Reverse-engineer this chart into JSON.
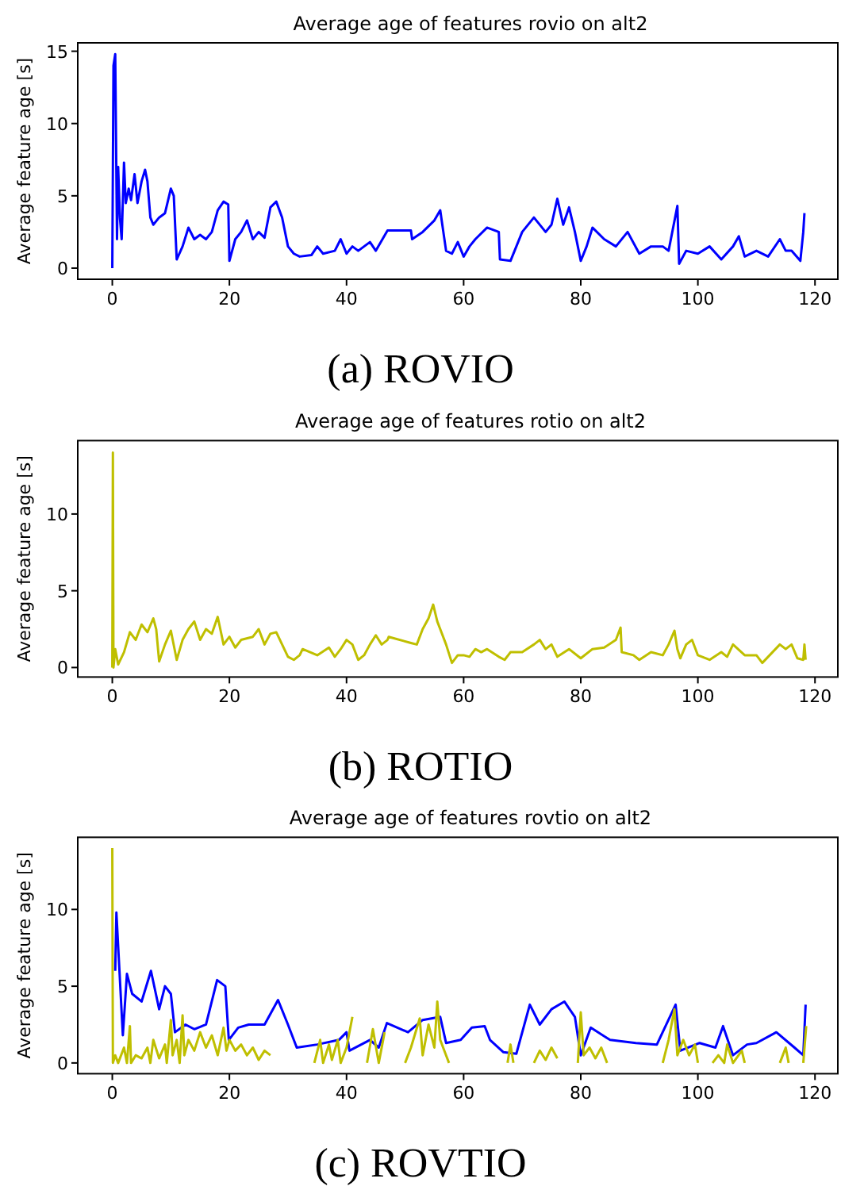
{
  "chart_data": [
    {
      "type": "line",
      "title": "Average age of features rovio on alt2",
      "ylabel": "Average feature age [s]",
      "xlim": [
        -5.9,
        123.9
      ],
      "ylim": [
        -0.77,
        15.58
      ],
      "xticks": [
        0,
        20,
        40,
        60,
        80,
        100,
        120
      ],
      "yticks": [
        0,
        5,
        10,
        15
      ],
      "annotations": [
        "(a) ROVIO"
      ],
      "series": [
        {
          "color": "#0000ff",
          "x": [
            0,
            0.2,
            0.5,
            0.8,
            1,
            1.3,
            1.6,
            2,
            2.3,
            2.8,
            3.2,
            3.8,
            4.3,
            5,
            5.6,
            6,
            6.5,
            7,
            8,
            9,
            10,
            10.5,
            11,
            12,
            13,
            14,
            15,
            16,
            17,
            18,
            19,
            19.8,
            20,
            21,
            22,
            23,
            24,
            25,
            26,
            27,
            28,
            29,
            30,
            31,
            32,
            34,
            35,
            36,
            38,
            39,
            40,
            41,
            42,
            43,
            44,
            45,
            47,
            51,
            51.2,
            53,
            55,
            56,
            57,
            58,
            59,
            60,
            61,
            62,
            64,
            66,
            66.2,
            68,
            70,
            72,
            74,
            75,
            76,
            77,
            78,
            79,
            80,
            81,
            82,
            84,
            86,
            88,
            90,
            92,
            94,
            95,
            96.5,
            96.8,
            98,
            100,
            102,
            104,
            106,
            107,
            108,
            110,
            112,
            114,
            115,
            116,
            117.5,
            118,
            118.2
          ],
          "values": [
            0,
            14,
            14.8,
            2,
            7,
            3.5,
            2,
            7.3,
            4.5,
            5.5,
            4.7,
            6.5,
            4.5,
            6,
            6.8,
            6,
            3.5,
            3,
            3.5,
            3.8,
            5.5,
            5,
            0.6,
            1.5,
            2.8,
            2,
            2.3,
            2,
            2.5,
            4,
            4.6,
            4.4,
            0.5,
            2,
            2.5,
            3.3,
            2,
            2.5,
            2.1,
            4.2,
            4.6,
            3.5,
            1.5,
            1,
            0.8,
            0.9,
            1.5,
            1,
            1.2,
            2,
            1,
            1.5,
            1.2,
            1.5,
            1.8,
            1.2,
            2.6,
            2.6,
            2,
            2.5,
            3.3,
            4,
            1.2,
            1,
            1.8,
            0.8,
            1.5,
            2,
            2.8,
            2.5,
            0.6,
            0.5,
            2.5,
            3.5,
            2.5,
            3,
            4.8,
            3,
            4.2,
            2.5,
            0.5,
            1.5,
            2.8,
            2,
            1.5,
            2.5,
            1,
            1.5,
            1.5,
            1.2,
            4.3,
            0.3,
            1.2,
            1,
            1.5,
            0.6,
            1.5,
            2.2,
            0.8,
            1.2,
            0.8,
            2,
            1.2,
            1.2,
            0.5,
            2.5,
            3.8
          ]
        }
      ]
    },
    {
      "type": "line",
      "title": "Average age of features rotio on alt2",
      "ylabel": "Average feature age [s]",
      "xlim": [
        -5.9,
        123.9
      ],
      "ylim": [
        -0.62,
        14.78
      ],
      "xticks": [
        0,
        20,
        40,
        60,
        80,
        100,
        120
      ],
      "yticks": [
        0,
        5,
        10
      ],
      "annotations": [
        "(b) ROTIO"
      ],
      "series": [
        {
          "color": "#bfbf00",
          "x": [
            0,
            0.1,
            0.2,
            0.5,
            1,
            2,
            3,
            4,
            5,
            6,
            7,
            7.5,
            8,
            9,
            10,
            11,
            12,
            13,
            14,
            15,
            16,
            17,
            18,
            19,
            20,
            21,
            22,
            24,
            25,
            26,
            27,
            28,
            29,
            30,
            31,
            32,
            32.5,
            35,
            37,
            38,
            39,
            40,
            41,
            42,
            43,
            44,
            45,
            46,
            47,
            47.2,
            51,
            52,
            53,
            54,
            54.8,
            55.5,
            56,
            57,
            58,
            59,
            60,
            61,
            62,
            63,
            64,
            66,
            67,
            68,
            70,
            72,
            73,
            74,
            75,
            76,
            78,
            80,
            82,
            84,
            86,
            86.8,
            87,
            89,
            90,
            92,
            94,
            95,
            96,
            96.5,
            97,
            98,
            99,
            100,
            102,
            104,
            105,
            106,
            108,
            110,
            111,
            112,
            114,
            115,
            116,
            117,
            118,
            118.2,
            118.4
          ],
          "values": [
            0,
            14,
            0,
            1.2,
            0.2,
            1,
            2.3,
            1.8,
            2.8,
            2.3,
            3.2,
            2.5,
            0.4,
            1.5,
            2.4,
            0.5,
            1.8,
            2.5,
            3,
            1.8,
            2.5,
            2.2,
            3.3,
            1.5,
            2,
            1.3,
            1.8,
            2,
            2.5,
            1.5,
            2.2,
            2.3,
            1.5,
            0.7,
            0.5,
            0.8,
            1.2,
            0.8,
            1.3,
            0.7,
            1.2,
            1.8,
            1.5,
            0.5,
            0.8,
            1.5,
            2.1,
            1.5,
            1.8,
            2,
            1.6,
            1.5,
            2.5,
            3.2,
            4.1,
            3,
            2.5,
            1.5,
            0.3,
            0.8,
            0.8,
            0.7,
            1.2,
            1,
            1.2,
            0.7,
            0.5,
            1,
            1,
            1.5,
            1.8,
            1.2,
            1.5,
            0.7,
            1.2,
            0.6,
            1.2,
            1.3,
            1.8,
            2.6,
            1,
            0.8,
            0.5,
            1,
            0.8,
            1.5,
            2.4,
            1.2,
            0.6,
            1.5,
            1.8,
            0.8,
            0.5,
            1,
            0.7,
            1.5,
            0.8,
            0.8,
            0.3,
            0.7,
            1.5,
            1.2,
            1.5,
            0.6,
            0.5,
            1.5,
            0.5
          ]
        }
      ]
    },
    {
      "type": "line",
      "title": "Average age of features rovtio on alt2",
      "ylabel": "Average feature age [s]",
      "xlim": [
        -5.9,
        123.9
      ],
      "ylim": [
        -0.7,
        14.7
      ],
      "xticks": [
        0,
        20,
        40,
        60,
        80,
        100,
        120
      ],
      "yticks": [
        0,
        5,
        10
      ],
      "annotations": [
        "(c) ROVTIO"
      ],
      "series": [
        {
          "color": "#0000ff",
          "x": [
            0.5,
            0.7,
            1.8,
            2.5,
            3.4,
            5,
            6.6,
            8,
            9,
            10,
            10.7,
            12.5,
            14,
            16,
            17.9,
            19.3,
            19.9,
            21.5,
            23.3,
            26,
            28.3,
            30,
            31.5,
            35,
            38.7,
            40,
            40.5,
            44,
            45.5,
            46.9,
            50.5,
            53,
            56,
            57,
            59.5,
            61.4,
            63.6,
            64.5,
            66.8,
            69,
            71.3,
            73,
            75,
            77.2,
            79,
            80,
            81.7,
            85,
            89.4,
            93,
            96.2,
            97,
            100.3,
            103,
            104.3,
            106,
            108.4,
            110,
            113.4,
            116.5,
            118,
            118.4
          ],
          "values": [
            6,
            9.8,
            1.8,
            5.8,
            4.5,
            4,
            6,
            3.5,
            5,
            4.5,
            2,
            2.5,
            2.2,
            2.5,
            5.4,
            5,
            1.5,
            2.3,
            2.5,
            2.5,
            4.1,
            2.5,
            1,
            1.2,
            1.5,
            2,
            0.8,
            1.5,
            1,
            2.6,
            2,
            2.8,
            3,
            1.3,
            1.5,
            2.3,
            2.4,
            1.5,
            0.7,
            0.6,
            3.8,
            2.5,
            3.5,
            4,
            3,
            0.5,
            2.3,
            1.5,
            1.3,
            1.2,
            3.8,
            0.8,
            1.3,
            1,
            2.4,
            0.5,
            1.2,
            1.3,
            2,
            1,
            0.5,
            3.8
          ]
        },
        {
          "color": "#bfbf00",
          "x": [
            0,
            0.1,
            0.5,
            1,
            2,
            2.5,
            3,
            3.2,
            4,
            5,
            6,
            6.5,
            7,
            8,
            9,
            9.3,
            10,
            10.3,
            11,
            11.5,
            12,
            12.3,
            13,
            14,
            15,
            16,
            17,
            18,
            19,
            19.5,
            20,
            21,
            22,
            23,
            24,
            25,
            26,
            27,
            30,
            34.5,
            35.5,
            36,
            37,
            37.5,
            38.5,
            39,
            40,
            41,
            42,
            43.5,
            44.5,
            45.5,
            46.5,
            48,
            50,
            51,
            52.5,
            53,
            54,
            55,
            55.5,
            56,
            57,
            57.5,
            62,
            67.5,
            68,
            68.5,
            70,
            72,
            73,
            74,
            75,
            76,
            78,
            79.5,
            80,
            80.5,
            81.5,
            82.5,
            83.5,
            84.5,
            90,
            94,
            95,
            96,
            96.5,
            97.5,
            98.5,
            99.5,
            100,
            101,
            102.5,
            103.5,
            104.5,
            105,
            106,
            107.5,
            108,
            110,
            114,
            115,
            115.5,
            117,
            118,
            118.5
          ],
          "values": [
            14,
            0,
            0.5,
            0,
            1,
            0,
            2.4,
            0,
            0.5,
            0.3,
            1,
            0,
            1.5,
            0.3,
            1.2,
            0,
            2.8,
            0.5,
            1.5,
            0,
            3.1,
            0.5,
            1.5,
            0.8,
            2,
            1,
            1.8,
            0.5,
            2.3,
            0.8,
            1.5,
            0.8,
            1.2,
            0.5,
            1,
            0.2,
            0.8,
            0.5,
            null,
            0,
            1.5,
            0,
            1.2,
            0.2,
            1.5,
            0,
            1,
            3,
            null,
            0,
            2.2,
            0,
            2,
            null,
            0,
            1,
            2.9,
            0.5,
            2.5,
            1,
            4,
            1.5,
            0.5,
            0,
            null,
            0,
            1.2,
            0,
            null,
            0,
            0.8,
            0.2,
            1,
            0.3,
            null,
            0,
            3.3,
            0.5,
            1,
            0.3,
            1,
            0,
            null,
            0,
            1.5,
            3.5,
            0.5,
            1.5,
            0.5,
            1.2,
            0,
            null,
            0,
            0.5,
            0,
            1.2,
            0,
            0.8,
            0,
            null,
            0,
            1,
            0,
            null,
            0,
            2.4
          ]
        }
      ]
    }
  ]
}
